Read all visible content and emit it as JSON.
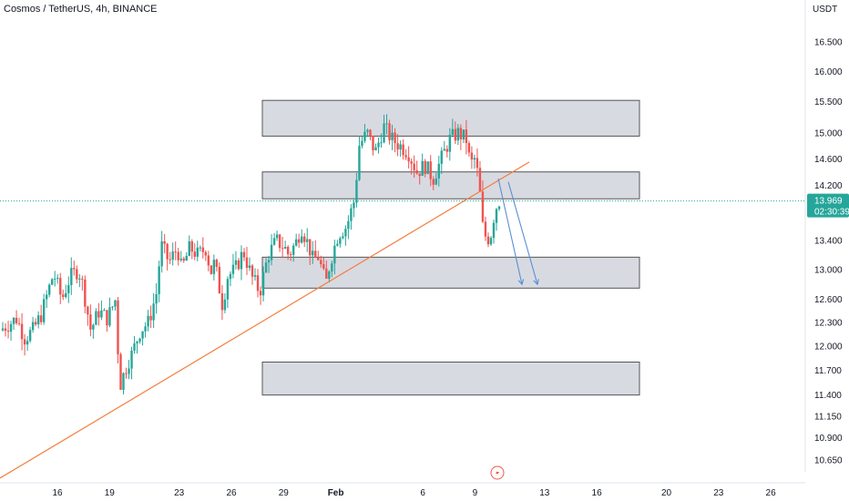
{
  "header": {
    "title": "Cosmos / TetherUS, 4h, BINANCE"
  },
  "price_axis": {
    "unit": "USDT",
    "ticks": [
      "16.500",
      "16.000",
      "15.500",
      "15.000",
      "14.600",
      "14.200",
      "13.400",
      "13.000",
      "12.600",
      "12.300",
      "12.000",
      "11.700",
      "11.400",
      "11.150",
      "10.900",
      "10.650"
    ]
  },
  "last_price": {
    "value": "13.969",
    "countdown": "02:30:39"
  },
  "time_axis": {
    "ticks": [
      "16",
      "19",
      "23",
      "26",
      "29",
      "Feb",
      "6",
      "9",
      "13",
      "16",
      "20",
      "23",
      "26"
    ]
  },
  "colors": {
    "up": "#26a69a",
    "down": "#ef5350",
    "trendline": "#f57c3b",
    "arrow": "#5b8fd6",
    "zone_fill": "#d1d4dc",
    "zone_stroke": "#555555",
    "price_line": "#26a69a"
  },
  "chart_data": {
    "type": "candlestick",
    "symbol": "Cosmos / TetherUS",
    "interval": "4h",
    "exchange": "BINANCE",
    "y_scale": "log",
    "ylim": [
      10.6,
      16.8
    ],
    "last_price": 13.969,
    "x_start_day": "Jan 14",
    "close_path": [
      [
        0,
        12.2
      ],
      [
        4,
        12.35
      ],
      [
        6,
        12.1
      ],
      [
        8,
        12.2
      ],
      [
        10,
        12.4
      ],
      [
        13,
        12.95
      ],
      [
        15,
        12.6
      ],
      [
        17,
        12.9
      ],
      [
        19,
        13.0
      ],
      [
        20,
        12.8
      ],
      [
        22,
        12.2
      ],
      [
        24,
        12.45
      ],
      [
        26,
        12.35
      ],
      [
        28,
        12.6
      ],
      [
        29,
        11.5
      ],
      [
        31,
        11.8
      ],
      [
        32,
        11.9
      ],
      [
        34,
        12.2
      ],
      [
        36,
        12.3
      ],
      [
        38,
        12.7
      ],
      [
        39,
        13.35
      ],
      [
        41,
        13.1
      ],
      [
        43,
        13.3
      ],
      [
        44,
        13.0
      ],
      [
        46,
        13.3
      ],
      [
        48,
        13.2
      ],
      [
        50,
        13.3
      ],
      [
        51,
        12.95
      ],
      [
        52,
        13.1
      ],
      [
        54,
        12.5
      ],
      [
        55,
        12.9
      ],
      [
        57,
        13.0
      ],
      [
        59,
        13.25
      ],
      [
        61,
        12.9
      ],
      [
        63,
        12.7
      ],
      [
        65,
        13.2
      ],
      [
        67,
        13.4
      ],
      [
        69,
        13.3
      ],
      [
        70,
        13.2
      ],
      [
        72,
        13.4
      ],
      [
        73,
        13.6
      ],
      [
        75,
        13.3
      ],
      [
        76,
        13.1
      ],
      [
        77,
        13.2
      ],
      [
        79,
        12.8
      ],
      [
        80,
        13.1
      ],
      [
        82,
        13.5
      ],
      [
        84,
        13.6
      ],
      [
        86,
        14.0
      ],
      [
        87,
        14.8
      ],
      [
        89,
        15.0
      ],
      [
        91,
        14.7
      ],
      [
        93,
        15.1
      ],
      [
        95,
        14.9
      ],
      [
        97,
        14.8
      ],
      [
        99,
        14.7
      ],
      [
        101,
        14.4
      ],
      [
        103,
        14.5
      ],
      [
        105,
        14.3
      ],
      [
        107,
        14.6
      ],
      [
        109,
        14.9
      ],
      [
        111,
        15.0
      ],
      [
        113,
        14.9
      ],
      [
        114,
        14.5
      ],
      [
        115,
        14.6
      ],
      [
        116,
        14.3
      ],
      [
        117,
        13.6
      ],
      [
        118,
        13.4
      ],
      [
        119,
        13.5
      ],
      [
        120,
        13.85
      ],
      [
        121,
        13.969
      ]
    ],
    "zones": [
      {
        "from": 14.95,
        "to": 15.52
      },
      {
        "from": 14.0,
        "to": 14.4
      },
      {
        "from": 12.75,
        "to": 13.17
      },
      {
        "from": 11.4,
        "to": 11.8
      }
    ],
    "trendline": {
      "from": {
        "x": "Jan 14",
        "y": 10.45
      },
      "to": {
        "x": "Feb 10",
        "y": 14.55
      }
    },
    "projection_arrows": [
      {
        "from": 14.3,
        "to": 12.8
      },
      {
        "from": 14.25,
        "to": 12.8
      }
    ]
  }
}
